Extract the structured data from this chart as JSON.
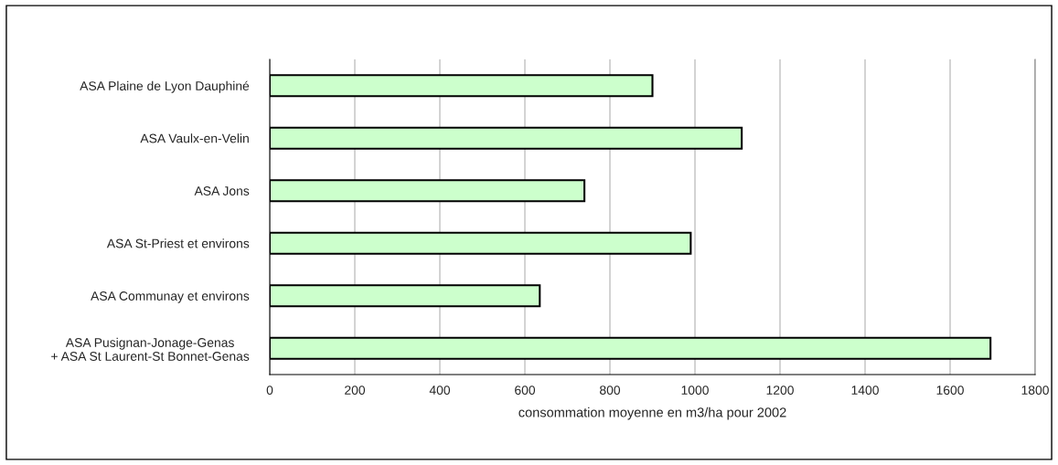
{
  "chart_data": {
    "type": "bar",
    "orientation": "horizontal",
    "categories": [
      "ASA Plaine de Lyon Dauphiné",
      "ASA Vaulx-en-Velin",
      "ASA Jons",
      "ASA St-Priest et environs",
      "ASA Communay et environs",
      "ASA Pusignan-Jonage-Genas\n+ ASA St Laurent-St Bonnet-Genas"
    ],
    "values": [
      900,
      1110,
      740,
      990,
      635,
      1695
    ],
    "color": "#ccffcc",
    "xlabel": "consommation moyenne en m3/ha pour 2002",
    "xlim": [
      0,
      1800
    ],
    "xticks": [
      0,
      200,
      400,
      600,
      800,
      1000,
      1200,
      1400,
      1600,
      1800
    ],
    "grid": "x"
  }
}
